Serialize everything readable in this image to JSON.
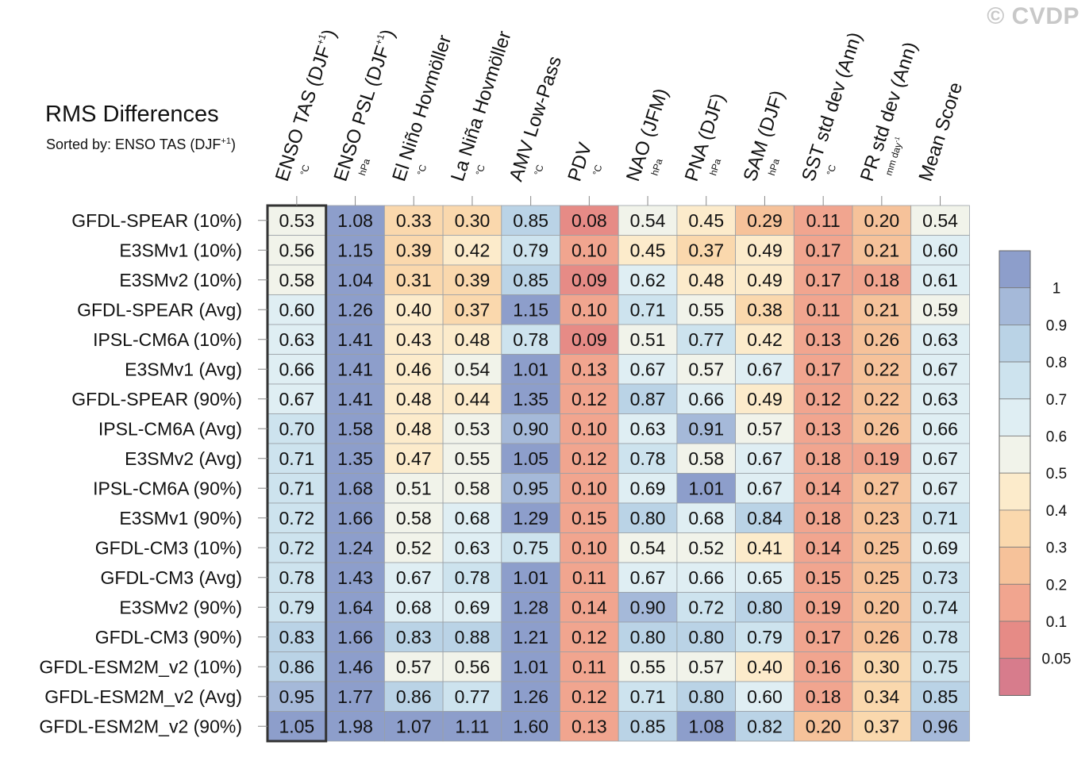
{
  "title": "RMS Differences",
  "subtitle": "Sorted by: ENSO TAS (DJF",
  "subtitle_sup": "+1",
  "subtitle_end": ")",
  "watermark": "© CVDP",
  "chart_data": {
    "type": "heatmap",
    "columns": [
      {
        "label": "ENSO TAS (DJF",
        "sup": "+1",
        "end": ")",
        "unit": "°C"
      },
      {
        "label": "ENSO PSL (DJF",
        "sup": "+1",
        "end": ")",
        "unit": "hPa"
      },
      {
        "label": "El Niño Hovmöller",
        "sup": "",
        "end": "",
        "unit": "°C"
      },
      {
        "label": "La Niña Hovmöller",
        "sup": "",
        "end": "",
        "unit": "°C"
      },
      {
        "label": "AMV Low-Pass",
        "sup": "",
        "end": "",
        "unit": "°C"
      },
      {
        "label": "PDV",
        "sup": "",
        "end": "",
        "unit": "°C"
      },
      {
        "label": "NAO (JFM)",
        "sup": "",
        "end": "",
        "unit": "hPa"
      },
      {
        "label": "PNA (DJF)",
        "sup": "",
        "end": "",
        "unit": "hPa"
      },
      {
        "label": "SAM (DJF)",
        "sup": "",
        "end": "",
        "unit": "hPa"
      },
      {
        "label": "SST std dev (Ann)",
        "sup": "",
        "end": "",
        "unit": "°C"
      },
      {
        "label": "PR std dev (Ann)",
        "sup": "",
        "end": "",
        "unit": "mm day",
        "unit_sup": "-1"
      },
      {
        "label": "Mean Score",
        "sup": "",
        "end": "",
        "unit": ""
      }
    ],
    "rows": [
      "GFDL-SPEAR (10%)",
      "E3SMv1 (10%)",
      "E3SMv2 (10%)",
      "GFDL-SPEAR (Avg)",
      "IPSL-CM6A (10%)",
      "E3SMv1 (Avg)",
      "GFDL-SPEAR (90%)",
      "IPSL-CM6A (Avg)",
      "E3SMv2 (Avg)",
      "IPSL-CM6A (90%)",
      "E3SMv1 (90%)",
      "GFDL-CM3 (10%)",
      "GFDL-CM3 (Avg)",
      "E3SMv2 (90%)",
      "GFDL-CM3 (90%)",
      "GFDL-ESM2M_v2 (10%)",
      "GFDL-ESM2M_v2 (Avg)",
      "GFDL-ESM2M_v2 (90%)"
    ],
    "values": [
      [
        "0.53",
        "1.08",
        "0.33",
        "0.30",
        "0.85",
        "0.08",
        "0.54",
        "0.45",
        "0.29",
        "0.11",
        "0.20",
        "0.54"
      ],
      [
        "0.56",
        "1.15",
        "0.39",
        "0.42",
        "0.79",
        "0.10",
        "0.45",
        "0.37",
        "0.49",
        "0.17",
        "0.21",
        "0.60"
      ],
      [
        "0.58",
        "1.04",
        "0.31",
        "0.39",
        "0.85",
        "0.09",
        "0.62",
        "0.48",
        "0.49",
        "0.17",
        "0.18",
        "0.61"
      ],
      [
        "0.60",
        "1.26",
        "0.40",
        "0.37",
        "1.15",
        "0.10",
        "0.71",
        "0.55",
        "0.38",
        "0.11",
        "0.21",
        "0.59"
      ],
      [
        "0.63",
        "1.41",
        "0.43",
        "0.48",
        "0.78",
        "0.09",
        "0.51",
        "0.77",
        "0.42",
        "0.13",
        "0.26",
        "0.63"
      ],
      [
        "0.66",
        "1.41",
        "0.46",
        "0.54",
        "1.01",
        "0.13",
        "0.67",
        "0.57",
        "0.67",
        "0.17",
        "0.22",
        "0.67"
      ],
      [
        "0.67",
        "1.41",
        "0.48",
        "0.44",
        "1.35",
        "0.12",
        "0.87",
        "0.66",
        "0.49",
        "0.12",
        "0.22",
        "0.63"
      ],
      [
        "0.70",
        "1.58",
        "0.48",
        "0.53",
        "0.90",
        "0.10",
        "0.63",
        "0.91",
        "0.57",
        "0.13",
        "0.26",
        "0.66"
      ],
      [
        "0.71",
        "1.35",
        "0.47",
        "0.55",
        "1.05",
        "0.12",
        "0.78",
        "0.58",
        "0.67",
        "0.18",
        "0.19",
        "0.67"
      ],
      [
        "0.71",
        "1.68",
        "0.51",
        "0.58",
        "0.95",
        "0.10",
        "0.69",
        "1.01",
        "0.67",
        "0.14",
        "0.27",
        "0.67"
      ],
      [
        "0.72",
        "1.66",
        "0.58",
        "0.68",
        "1.29",
        "0.15",
        "0.80",
        "0.68",
        "0.84",
        "0.18",
        "0.23",
        "0.71"
      ],
      [
        "0.72",
        "1.24",
        "0.52",
        "0.63",
        "0.75",
        "0.10",
        "0.54",
        "0.52",
        "0.41",
        "0.14",
        "0.25",
        "0.69"
      ],
      [
        "0.78",
        "1.43",
        "0.67",
        "0.78",
        "1.01",
        "0.11",
        "0.67",
        "0.66",
        "0.65",
        "0.15",
        "0.25",
        "0.73"
      ],
      [
        "0.79",
        "1.64",
        "0.68",
        "0.69",
        "1.28",
        "0.14",
        "0.90",
        "0.72",
        "0.80",
        "0.19",
        "0.20",
        "0.74"
      ],
      [
        "0.83",
        "1.66",
        "0.83",
        "0.88",
        "1.21",
        "0.12",
        "0.80",
        "0.80",
        "0.79",
        "0.17",
        "0.26",
        "0.78"
      ],
      [
        "0.86",
        "1.46",
        "0.57",
        "0.56",
        "1.01",
        "0.11",
        "0.55",
        "0.57",
        "0.40",
        "0.16",
        "0.30",
        "0.75"
      ],
      [
        "0.95",
        "1.77",
        "0.86",
        "0.77",
        "1.26",
        "0.12",
        "0.71",
        "0.80",
        "0.60",
        "0.18",
        "0.34",
        "0.85"
      ],
      [
        "1.05",
        "1.98",
        "1.07",
        "1.11",
        "1.60",
        "0.13",
        "0.85",
        "1.08",
        "0.82",
        "0.20",
        "0.37",
        "0.96"
      ]
    ],
    "sorted_column": 0,
    "colorbar": {
      "levels": [
        0.05,
        0.1,
        0.2,
        0.3,
        0.4,
        0.5,
        0.6,
        0.7,
        0.8,
        0.9,
        1
      ],
      "labels": [
        "1",
        "0.9",
        "0.8",
        "0.7",
        "0.6",
        "0.5",
        "0.4",
        "0.3",
        "0.2",
        "0.1",
        "0.05"
      ],
      "colors_top_to_bottom": [
        "#8d9ecb",
        "#a5b9d9",
        "#bad3e6",
        "#cde3ee",
        "#dfeef3",
        "#f1f3ea",
        "#fcebcb",
        "#fad8ad",
        "#f6c29a",
        "#f1a58f",
        "#e68b86",
        "#d77c8c"
      ]
    }
  }
}
